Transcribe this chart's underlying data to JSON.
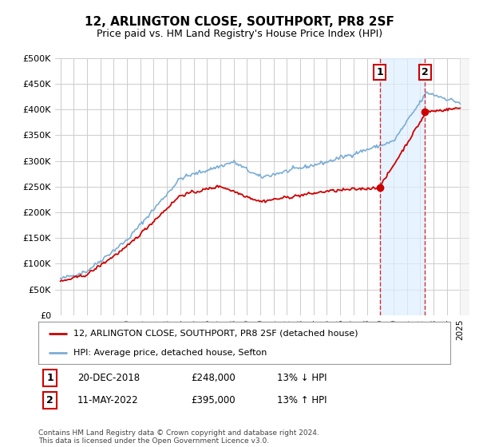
{
  "title": "12, ARLINGTON CLOSE, SOUTHPORT, PR8 2SF",
  "subtitle": "Price paid vs. HM Land Registry's House Price Index (HPI)",
  "title_fontsize": 11,
  "subtitle_fontsize": 9,
  "hpi_color": "#7aadd4",
  "price_color": "#cc0000",
  "background_color": "#ffffff",
  "grid_color": "#cccccc",
  "shade_color": "#ddeeff",
  "ylim": [
    0,
    500000
  ],
  "yticks": [
    0,
    50000,
    100000,
    150000,
    200000,
    250000,
    300000,
    350000,
    400000,
    450000,
    500000
  ],
  "ytick_labels": [
    "£0",
    "£50K",
    "£100K",
    "£150K",
    "£200K",
    "£250K",
    "£300K",
    "£350K",
    "£400K",
    "£450K",
    "£500K"
  ],
  "legend_label_price": "12, ARLINGTON CLOSE, SOUTHPORT, PR8 2SF (detached house)",
  "legend_label_hpi": "HPI: Average price, detached house, Sefton",
  "annotation1_year": 2018.96,
  "annotation1_price": 248000,
  "annotation1_label": "1",
  "annotation1_date": "20-DEC-2018",
  "annotation1_price_str": "£248,000",
  "annotation1_pct": "13% ↓ HPI",
  "annotation2_year": 2022.37,
  "annotation2_price": 395000,
  "annotation2_label": "2",
  "annotation2_date": "11-MAY-2022",
  "annotation2_price_str": "£395,000",
  "annotation2_pct": "13% ↑ HPI",
  "footer": "Contains HM Land Registry data © Crown copyright and database right 2024.\nThis data is licensed under the Open Government Licence v3.0.",
  "xstart_year": 1995,
  "xend_year": 2025
}
